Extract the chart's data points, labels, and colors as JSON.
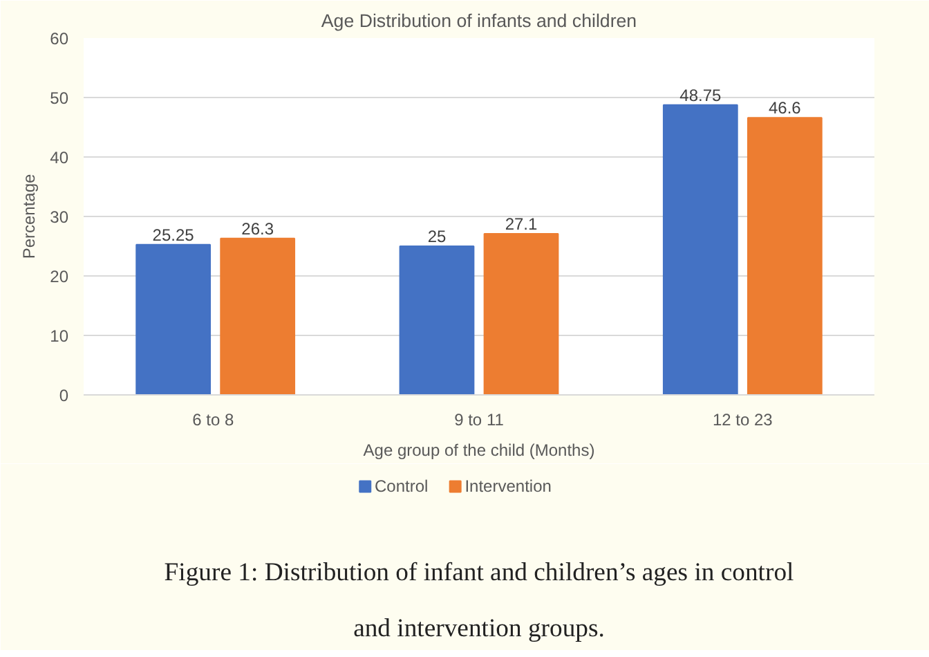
{
  "chart_data": {
    "type": "bar",
    "title": "Age Distribution of infants and children",
    "xlabel": "Age group of the child (Months)",
    "ylabel": "Percentage",
    "categories": [
      "6  to 8",
      "9 to 11",
      "12 to 23"
    ],
    "series": [
      {
        "name": "Control",
        "color": "#4472c4",
        "values": [
          25.25,
          25,
          48.75
        ]
      },
      {
        "name": "Intervention",
        "color": "#ed7d31",
        "values": [
          26.3,
          27.1,
          46.6
        ]
      }
    ],
    "ylim": [
      0,
      60
    ],
    "yticks": [
      0,
      10,
      20,
      30,
      40,
      50,
      60
    ],
    "grid": "y",
    "legend": "bottom",
    "data_labels": true,
    "annotations": [
      "Figure 1: Distribution of infant and children’s ages in control and intervention groups."
    ]
  }
}
